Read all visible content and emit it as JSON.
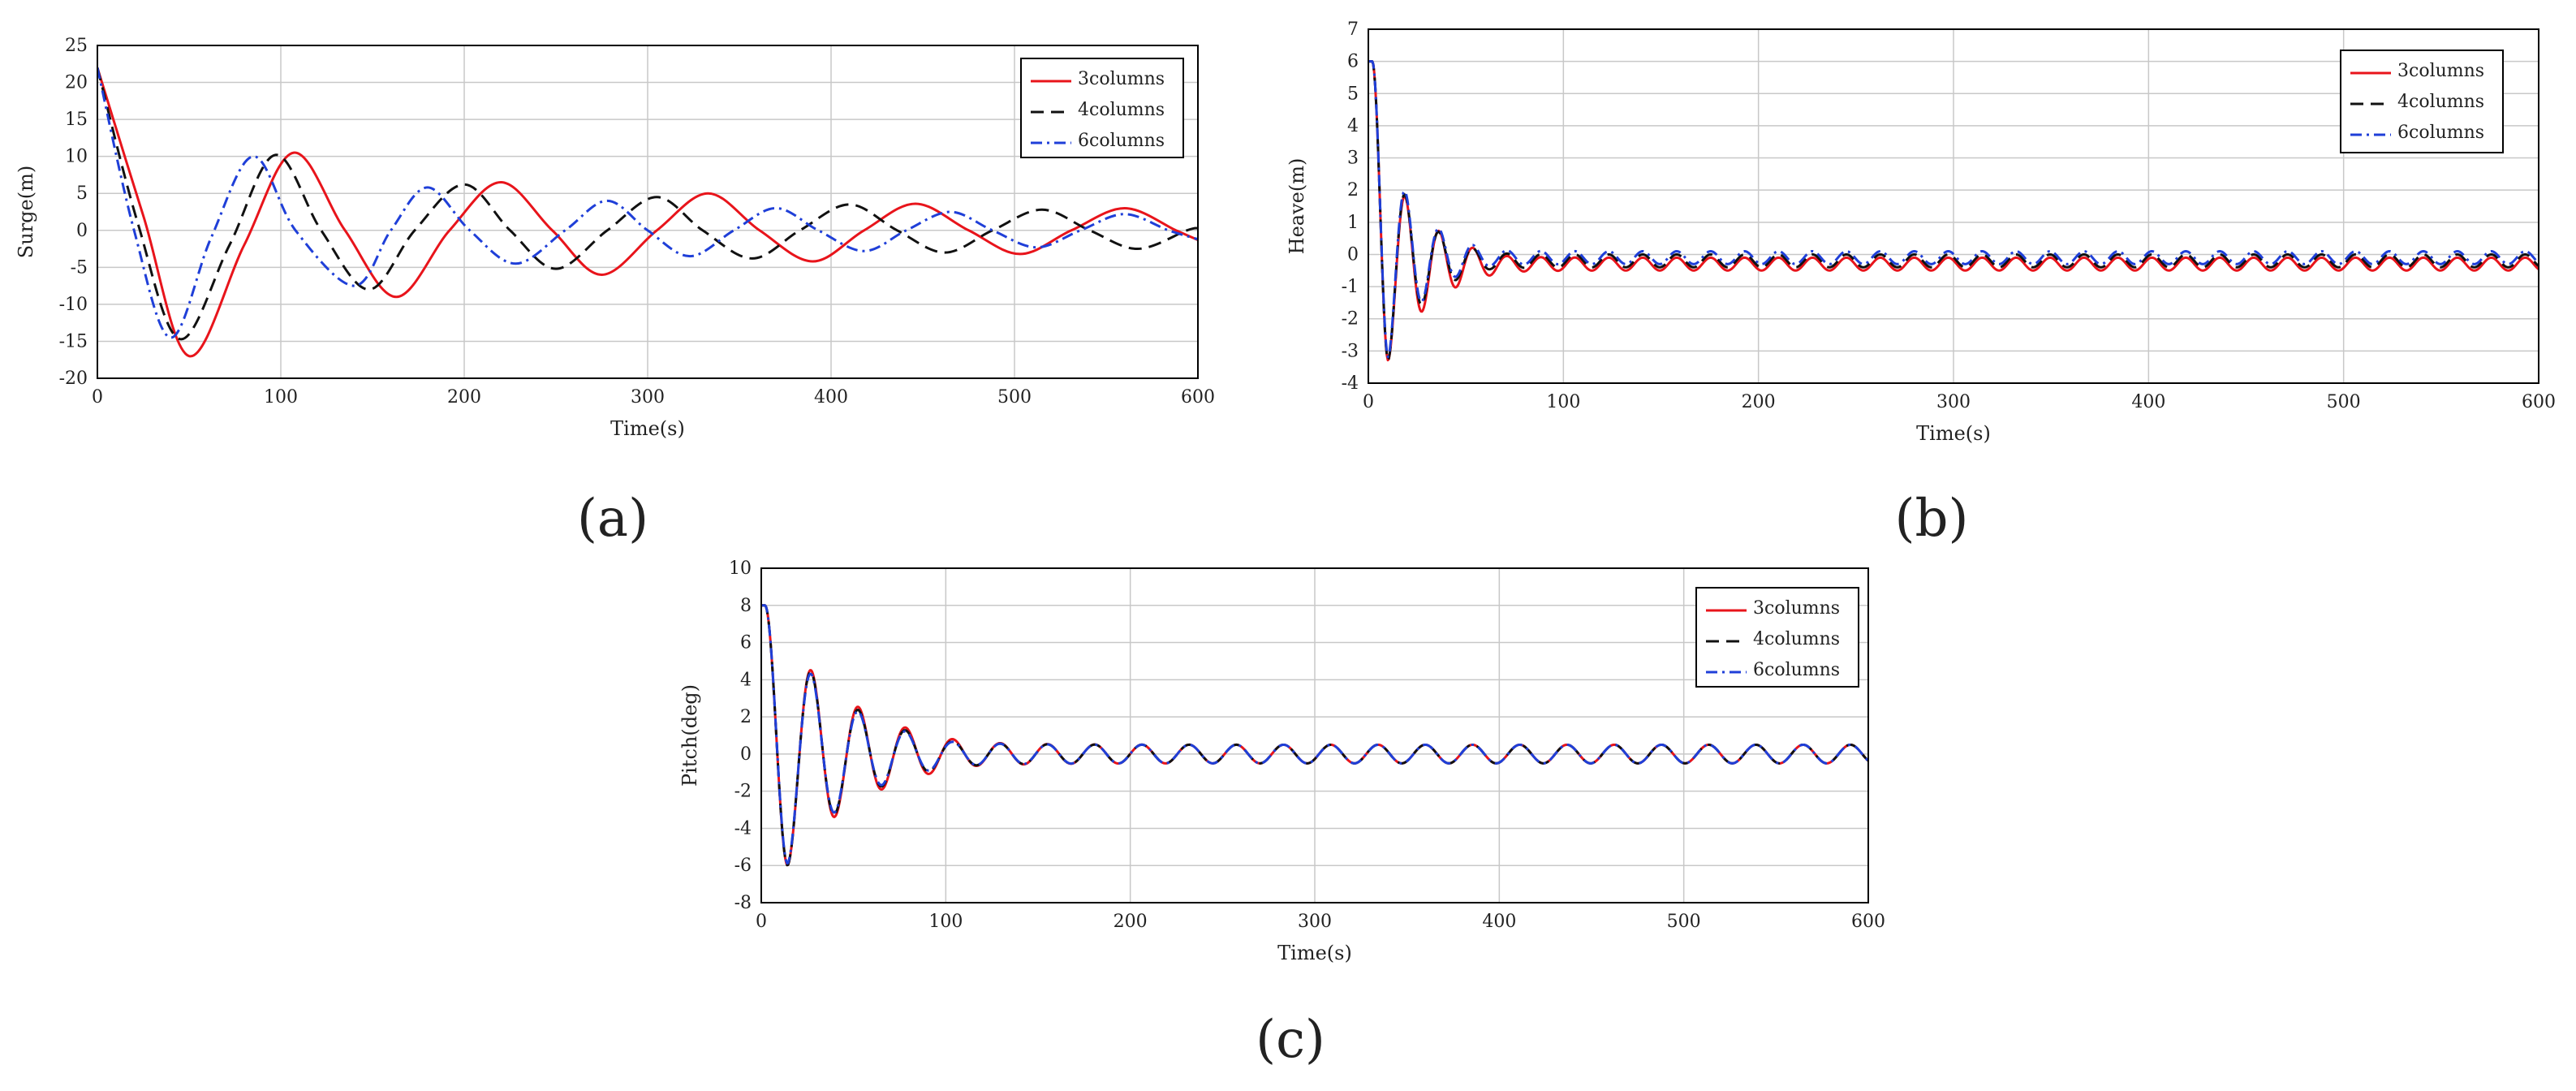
{
  "chart_data": [
    {
      "panel": "a",
      "panel_label": "(a)",
      "type": "line",
      "title": "",
      "xlabel": "Time(s)",
      "ylabel": "Surge(m)",
      "xlim": [
        0,
        600
      ],
      "ylim": [
        -20,
        25
      ],
      "xticks": [
        0,
        100,
        200,
        300,
        400,
        500,
        600
      ],
      "yticks": [
        -20,
        -15,
        -10,
        -5,
        0,
        5,
        10,
        15,
        20,
        25
      ],
      "grid": true,
      "legend_position": "top-right",
      "series": [
        {
          "name": "3columns",
          "color": "#e8141b",
          "dash": "solid",
          "points": [
            [
              0,
              22
            ],
            [
              25,
              2
            ],
            [
              50,
              -17
            ],
            [
              80,
              -2
            ],
            [
              107,
              10.5
            ],
            [
              135,
              0
            ],
            [
              163,
              -9
            ],
            [
              192,
              0
            ],
            [
              220,
              6.5
            ],
            [
              248,
              0
            ],
            [
              275,
              -6
            ],
            [
              305,
              0
            ],
            [
              333,
              5
            ],
            [
              361,
              0
            ],
            [
              390,
              -4.2
            ],
            [
              418,
              0
            ],
            [
              446,
              3.6
            ],
            [
              475,
              0
            ],
            [
              503,
              -3.2
            ],
            [
              531,
              0
            ],
            [
              560,
              3
            ],
            [
              588,
              0
            ],
            [
              600,
              -1.3
            ]
          ]
        },
        {
          "name": "4columns",
          "color": "#111111",
          "dash": "dashed",
          "points": [
            [
              0,
              22
            ],
            [
              22,
              1
            ],
            [
              45,
              -14.7
            ],
            [
              72,
              -2
            ],
            [
              97,
              10.2
            ],
            [
              122,
              0
            ],
            [
              148,
              -8
            ],
            [
              173,
              0
            ],
            [
              200,
              6.2
            ],
            [
              225,
              0
            ],
            [
              250,
              -5.2
            ],
            [
              278,
              0
            ],
            [
              305,
              4.5
            ],
            [
              330,
              0
            ],
            [
              357,
              -3.8
            ],
            [
              383,
              0
            ],
            [
              410,
              3.5
            ],
            [
              436,
              0
            ],
            [
              462,
              -3
            ],
            [
              488,
              0
            ],
            [
              515,
              2.8
            ],
            [
              541,
              0
            ],
            [
              567,
              -2.5
            ],
            [
              594,
              0
            ],
            [
              600,
              0.3
            ]
          ]
        },
        {
          "name": "6columns",
          "color": "#1f3fd8",
          "dash": "dashdot",
          "points": [
            [
              0,
              22
            ],
            [
              20,
              0
            ],
            [
              40,
              -14.5
            ],
            [
              62,
              -1
            ],
            [
              85,
              10
            ],
            [
              108,
              0
            ],
            [
              140,
              -7.5
            ],
            [
              160,
              0
            ],
            [
              180,
              5.8
            ],
            [
              203,
              0
            ],
            [
              228,
              -4.5
            ],
            [
              255,
              0
            ],
            [
              278,
              4
            ],
            [
              300,
              0
            ],
            [
              323,
              -3.5
            ],
            [
              347,
              0
            ],
            [
              370,
              3
            ],
            [
              393,
              0
            ],
            [
              418,
              -2.8
            ],
            [
              441,
              0
            ],
            [
              465,
              2.5
            ],
            [
              488,
              0
            ],
            [
              512,
              -2.3
            ],
            [
              536,
              0
            ],
            [
              560,
              2.2
            ],
            [
              584,
              0
            ],
            [
              600,
              -1.2
            ]
          ]
        }
      ],
      "legend_labels": [
        "3columns",
        "4columns",
        "6columns"
      ]
    },
    {
      "panel": "b",
      "panel_label": "(b)",
      "type": "line",
      "title": "",
      "xlabel": "Time(s)",
      "ylabel": "Heave(m)",
      "xlim": [
        0,
        600
      ],
      "ylim": [
        -4,
        7
      ],
      "xticks": [
        0,
        100,
        200,
        300,
        400,
        500,
        600
      ],
      "yticks": [
        -4,
        -3,
        -2,
        -1,
        0,
        1,
        2,
        3,
        4,
        5,
        6,
        7
      ],
      "grid": true,
      "legend_position": "top-right",
      "oscillation_period": 17.4,
      "series": [
        {
          "name": "3columns",
          "color": "#e8141b",
          "dash": "solid",
          "start": 6.0,
          "first_trough": -3.3,
          "first_peak": 1.8,
          "steady_mean": -0.3,
          "steady_amp": 0.2
        },
        {
          "name": "4columns",
          "color": "#111111",
          "dash": "dashed",
          "start": 6.0,
          "first_trough": -3.3,
          "first_peak": 1.85,
          "steady_mean": -0.2,
          "steady_amp": 0.2
        },
        {
          "name": "6columns",
          "color": "#1f3fd8",
          "dash": "dashdot",
          "start": 6.0,
          "first_trough": -3.2,
          "first_peak": 1.95,
          "steady_mean": -0.1,
          "steady_amp": 0.2
        }
      ],
      "legend_labels": [
        "3columns",
        "4columns",
        "6columns"
      ]
    },
    {
      "panel": "c",
      "panel_label": "(c)",
      "type": "line",
      "title": "",
      "xlabel": "Time(s)",
      "ylabel": "Pitch(deg)",
      "xlim": [
        0,
        600
      ],
      "ylim": [
        -8,
        10
      ],
      "xticks": [
        0,
        100,
        200,
        300,
        400,
        500,
        600
      ],
      "yticks": [
        -8,
        -6,
        -4,
        -2,
        0,
        2,
        4,
        6,
        8,
        10
      ],
      "grid": true,
      "legend_position": "top-right",
      "oscillation_period": 25.6,
      "series": [
        {
          "name": "3columns",
          "color": "#e8141b",
          "dash": "solid",
          "start": 8.0,
          "first_trough": -6.0,
          "first_peak": 4.5,
          "steady_mean": 0.0,
          "steady_amp": 0.5
        },
        {
          "name": "4columns",
          "color": "#111111",
          "dash": "dashed",
          "start": 8.0,
          "first_trough": -6.0,
          "first_peak": 4.4,
          "steady_mean": 0.0,
          "steady_amp": 0.5
        },
        {
          "name": "6columns",
          "color": "#1f3fd8",
          "dash": "dashdot",
          "start": 8.0,
          "first_trough": -5.9,
          "first_peak": 4.3,
          "steady_mean": 0.0,
          "steady_amp": 0.5
        }
      ],
      "legend_labels": [
        "3columns",
        "4columns",
        "6columns"
      ]
    }
  ]
}
